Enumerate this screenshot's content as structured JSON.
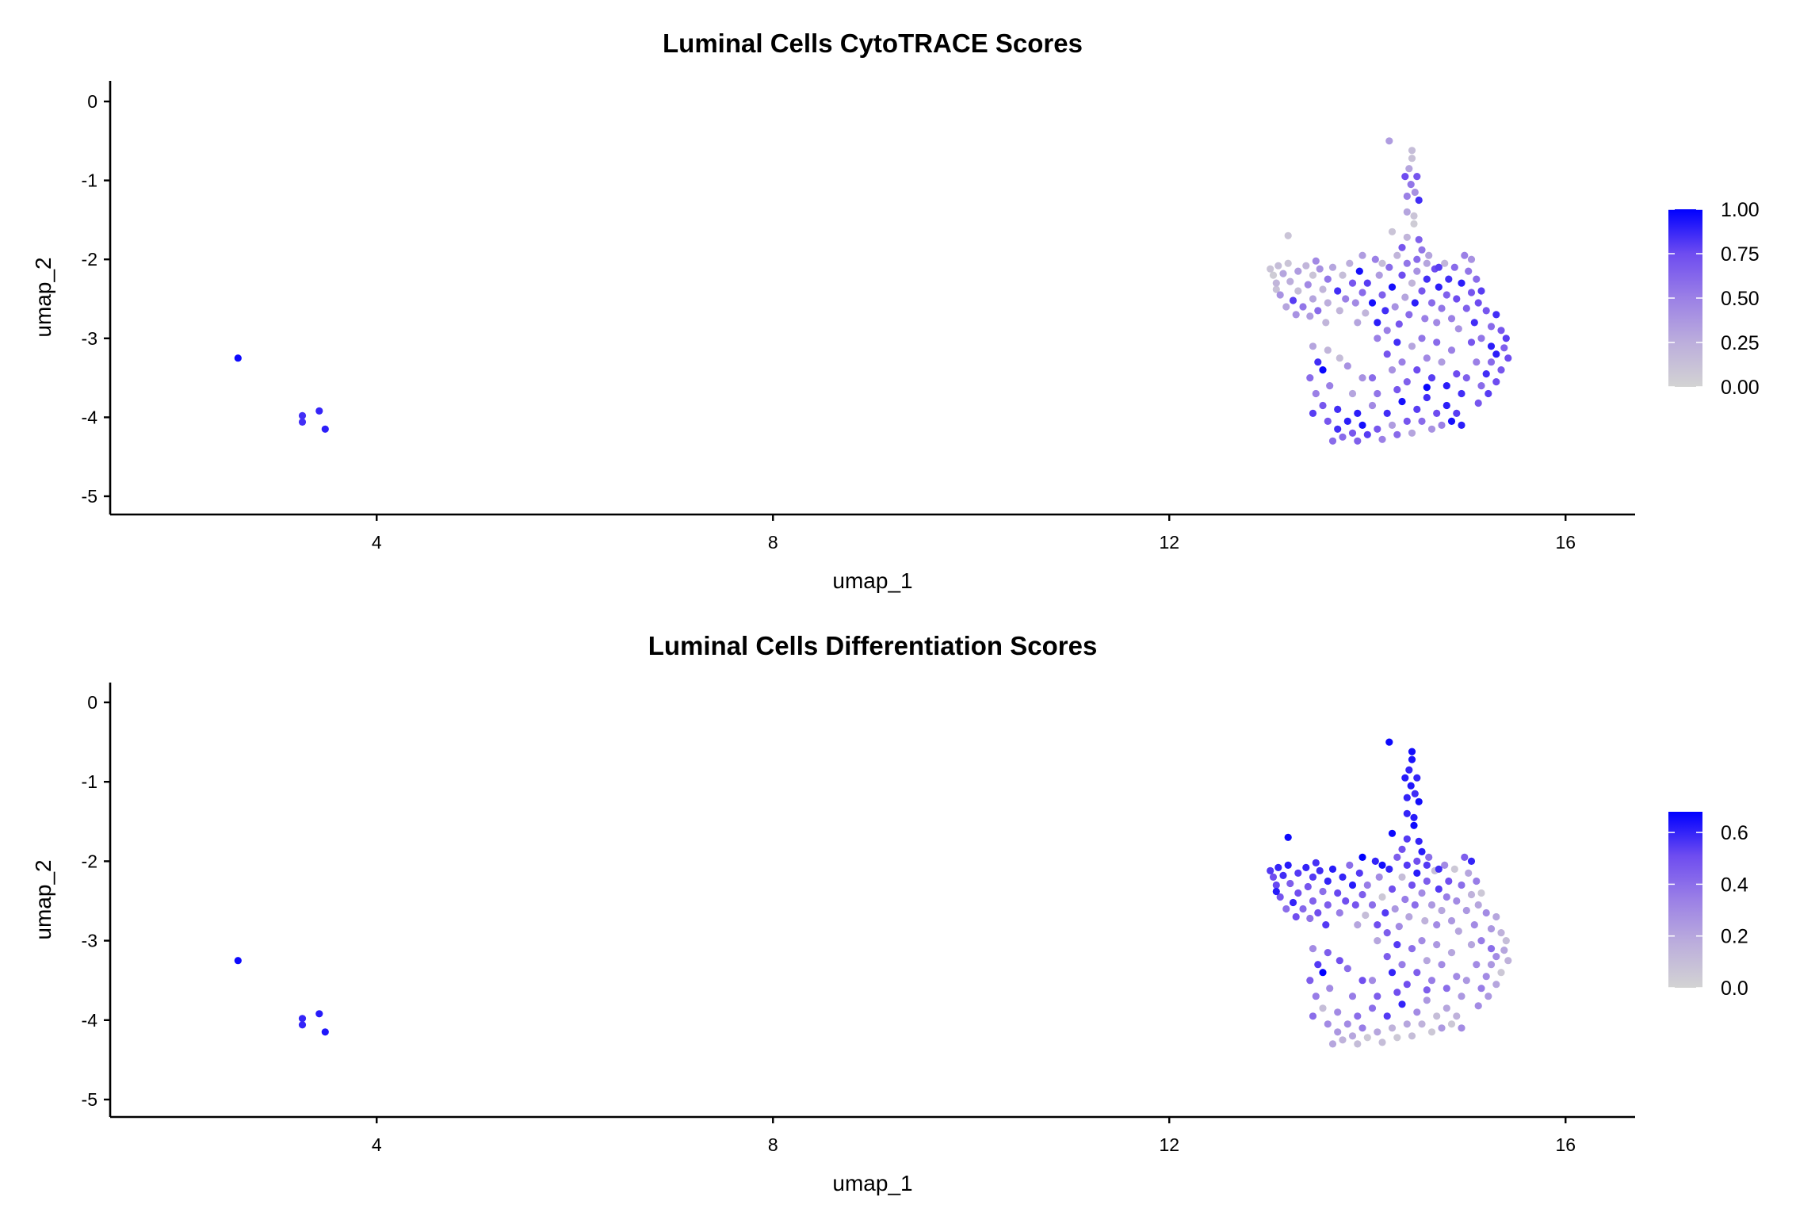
{
  "chart_data": [
    {
      "type": "scatter",
      "title": "Luminal Cells CytoTRACE Scores",
      "xlabel": "umap_1",
      "ylabel": "umap_2",
      "xlim": [
        1.31,
        16.71
      ],
      "ylim": [
        -5.23,
        0.26
      ],
      "xticks": [
        4,
        8,
        12,
        16
      ],
      "yticks": [
        0,
        -1,
        -2,
        -3,
        -4,
        -5
      ],
      "grid": false,
      "legend_placement": "right",
      "color_field": "cytotrace",
      "colorbar": {
        "limits": [
          0,
          1
        ],
        "breaks": [
          1.0,
          0.75,
          0.5,
          0.25,
          0.0
        ],
        "labels": [
          "1.00",
          "0.75",
          "0.50",
          "0.25",
          "0.00"
        ],
        "low_color": "#D3D3D3",
        "high_color": "#0000FF"
      }
    },
    {
      "type": "scatter",
      "title": "Luminal Cells Differentiation Scores",
      "xlabel": "umap_1",
      "ylabel": "umap_2",
      "xlim": [
        1.31,
        16.71
      ],
      "ylim": [
        -5.23,
        0.26
      ],
      "xticks": [
        4,
        8,
        12,
        16
      ],
      "yticks": [
        0,
        -1,
        -2,
        -3,
        -4,
        -5
      ],
      "grid": false,
      "legend_placement": "right",
      "color_field": "differentiation",
      "colorbar": {
        "limits": [
          0,
          0.68
        ],
        "breaks": [
          0.6,
          0.4,
          0.2,
          0.0
        ],
        "labels": [
          "0.6",
          "0.4",
          "0.2",
          "0.0"
        ],
        "low_color": "#D3D3D3",
        "high_color": "#0000FF"
      }
    }
  ],
  "cells_columns": [
    "umap_1",
    "umap_2",
    "cytotrace",
    "differentiation"
  ],
  "cells": [
    [
      2.6,
      -3.25,
      0.97,
      0.66
    ],
    [
      3.25,
      -3.98,
      0.85,
      0.6
    ],
    [
      3.25,
      -4.06,
      0.85,
      0.6
    ],
    [
      3.42,
      -3.92,
      0.88,
      0.62
    ],
    [
      3.48,
      -4.15,
      0.9,
      0.63
    ],
    [
      14.22,
      -0.5,
      0.35,
      0.66
    ],
    [
      14.45,
      -0.62,
      0.15,
      0.65
    ],
    [
      14.45,
      -0.72,
      0.12,
      0.64
    ],
    [
      14.42,
      -0.85,
      0.3,
      0.6
    ],
    [
      14.38,
      -0.95,
      0.75,
      0.62
    ],
    [
      14.5,
      -0.95,
      0.7,
      0.6
    ],
    [
      14.44,
      -1.05,
      0.55,
      0.63
    ],
    [
      14.48,
      -1.15,
      0.4,
      0.58
    ],
    [
      14.4,
      -1.2,
      0.5,
      0.6
    ],
    [
      14.52,
      -1.25,
      0.85,
      0.65
    ],
    [
      14.4,
      -1.4,
      0.3,
      0.6
    ],
    [
      14.47,
      -1.45,
      0.1,
      0.62
    ],
    [
      14.47,
      -1.55,
      0.05,
      0.66
    ],
    [
      14.25,
      -1.65,
      0.1,
      0.66
    ],
    [
      14.4,
      -1.72,
      0.2,
      0.55
    ],
    [
      14.52,
      -1.75,
      0.65,
      0.6
    ],
    [
      14.35,
      -1.85,
      0.7,
      0.5
    ],
    [
      14.55,
      -1.88,
      0.55,
      0.62
    ],
    [
      13.95,
      -1.95,
      0.35,
      0.68
    ],
    [
      14.15,
      -2.05,
      0.15,
      0.65
    ],
    [
      13.2,
      -1.7,
      0.1,
      0.66
    ],
    [
      14.5,
      -2.0,
      0.6,
      0.5
    ],
    [
      14.6,
      -2.05,
      0.3,
      0.55
    ],
    [
      14.72,
      -2.1,
      0.8,
      0.58
    ],
    [
      13.02,
      -2.12,
      0.1,
      0.55
    ],
    [
      13.05,
      -2.2,
      0.05,
      0.5
    ],
    [
      13.1,
      -2.08,
      0.15,
      0.6
    ],
    [
      13.08,
      -2.3,
      0.2,
      0.52
    ],
    [
      13.15,
      -2.18,
      0.3,
      0.58
    ],
    [
      13.12,
      -2.45,
      0.4,
      0.48
    ],
    [
      13.2,
      -2.05,
      0.1,
      0.62
    ],
    [
      13.22,
      -2.28,
      0.25,
      0.45
    ],
    [
      13.25,
      -2.52,
      0.8,
      0.6
    ],
    [
      13.3,
      -2.15,
      0.35,
      0.55
    ],
    [
      13.3,
      -2.4,
      0.15,
      0.5
    ],
    [
      13.35,
      -2.6,
      0.55,
      0.42
    ],
    [
      13.38,
      -2.08,
      0.2,
      0.6
    ],
    [
      13.4,
      -2.32,
      0.45,
      0.48
    ],
    [
      13.45,
      -2.2,
      0.1,
      0.55
    ],
    [
      13.45,
      -2.5,
      0.3,
      0.44
    ],
    [
      13.5,
      -2.65,
      0.6,
      0.5
    ],
    [
      13.52,
      -2.12,
      0.4,
      0.58
    ],
    [
      13.55,
      -2.38,
      0.2,
      0.4
    ],
    [
      13.6,
      -2.25,
      0.55,
      0.6
    ],
    [
      13.6,
      -2.55,
      0.25,
      0.45
    ],
    [
      13.65,
      -2.1,
      0.3,
      0.62
    ],
    [
      13.7,
      -2.4,
      0.85,
      0.52
    ],
    [
      13.72,
      -2.65,
      0.2,
      0.35
    ],
    [
      13.75,
      -2.2,
      0.15,
      0.6
    ],
    [
      13.78,
      -2.5,
      0.5,
      0.5
    ],
    [
      13.18,
      -2.6,
      0.3,
      0.4
    ],
    [
      13.28,
      -2.7,
      0.4,
      0.5
    ],
    [
      13.42,
      -2.72,
      0.35,
      0.38
    ],
    [
      13.58,
      -2.8,
      0.2,
      0.55
    ],
    [
      13.08,
      -2.38,
      0.12,
      0.62
    ],
    [
      13.48,
      -2.02,
      0.45,
      0.57
    ],
    [
      13.82,
      -2.05,
      0.25,
      0.4
    ],
    [
      13.85,
      -2.3,
      0.7,
      0.62
    ],
    [
      13.88,
      -2.55,
      0.45,
      0.48
    ],
    [
      13.9,
      -2.8,
      0.3,
      0.2
    ],
    [
      13.92,
      -2.15,
      0.95,
      0.55
    ],
    [
      13.95,
      -2.42,
      0.6,
      0.45
    ],
    [
      13.98,
      -2.68,
      0.2,
      0.1
    ],
    [
      14.0,
      -2.3,
      0.8,
      0.35
    ],
    [
      14.05,
      -2.55,
      0.95,
      0.4
    ],
    [
      14.08,
      -2.0,
      0.5,
      0.6
    ],
    [
      14.1,
      -2.8,
      0.9,
      0.5
    ],
    [
      14.12,
      -2.2,
      0.35,
      0.3
    ],
    [
      14.15,
      -2.45,
      0.65,
      0.05
    ],
    [
      14.18,
      -2.65,
      0.85,
      0.55
    ],
    [
      14.2,
      -2.9,
      0.5,
      0.45
    ],
    [
      14.22,
      -2.1,
      0.6,
      0.6
    ],
    [
      14.25,
      -2.35,
      0.95,
      0.5
    ],
    [
      14.28,
      -2.6,
      0.4,
      0.25
    ],
    [
      14.3,
      -1.95,
      0.2,
      0.45
    ],
    [
      14.32,
      -2.82,
      0.7,
      0.3
    ],
    [
      14.35,
      -2.2,
      0.75,
      0.1
    ],
    [
      14.38,
      -2.48,
      0.3,
      0.35
    ],
    [
      14.4,
      -2.05,
      0.55,
      0.55
    ],
    [
      14.42,
      -2.7,
      0.6,
      0.2
    ],
    [
      14.45,
      -2.3,
      0.2,
      0.5
    ],
    [
      14.48,
      -2.55,
      0.9,
      0.4
    ],
    [
      14.5,
      -2.15,
      0.4,
      0.62
    ],
    [
      14.55,
      -2.4,
      0.7,
      0.3
    ],
    [
      14.58,
      -2.75,
      0.5,
      0.15
    ],
    [
      14.6,
      -2.25,
      0.85,
      0.45
    ],
    [
      14.62,
      -1.95,
      0.3,
      0.4
    ],
    [
      14.65,
      -2.55,
      0.6,
      0.25
    ],
    [
      14.68,
      -2.12,
      0.75,
      0.1
    ],
    [
      14.7,
      -2.8,
      0.45,
      0.3
    ],
    [
      14.72,
      -2.35,
      0.9,
      0.55
    ],
    [
      14.75,
      -2.62,
      0.55,
      0.2
    ],
    [
      14.78,
      -2.05,
      0.2,
      0.3
    ],
    [
      14.8,
      -2.45,
      0.65,
      0.35
    ],
    [
      14.82,
      -2.25,
      0.85,
      0.5
    ],
    [
      14.85,
      -2.75,
      0.5,
      0.25
    ],
    [
      14.88,
      -2.1,
      0.6,
      0.05
    ],
    [
      14.9,
      -2.5,
      0.75,
      0.3
    ],
    [
      14.92,
      -2.88,
      0.4,
      0.2
    ],
    [
      14.95,
      -2.3,
      0.9,
      0.4
    ],
    [
      15.0,
      -2.62,
      0.65,
      0.25
    ],
    [
      15.02,
      -2.15,
      0.55,
      0.2
    ],
    [
      15.05,
      -2.42,
      0.7,
      0.15
    ],
    [
      15.08,
      -2.8,
      0.85,
      0.3
    ],
    [
      15.1,
      -2.25,
      0.6,
      0.35
    ],
    [
      15.12,
      -2.55,
      0.75,
      0.2
    ],
    [
      15.15,
      -2.4,
      0.8,
      0.05
    ],
    [
      15.2,
      -2.65,
      0.7,
      0.3
    ],
    [
      15.25,
      -2.85,
      0.6,
      0.25
    ],
    [
      14.98,
      -1.95,
      0.5,
      0.45
    ],
    [
      15.05,
      -2.0,
      0.4,
      0.6
    ],
    [
      15.3,
      -2.7,
      0.85,
      0.2
    ],
    [
      15.35,
      -2.9,
      0.7,
      0.15
    ],
    [
      15.4,
      -3.0,
      0.8,
      0.1
    ],
    [
      15.38,
      -3.12,
      0.65,
      0.2
    ],
    [
      15.3,
      -3.2,
      0.9,
      0.3
    ],
    [
      15.42,
      -3.25,
      0.75,
      0.15
    ],
    [
      15.25,
      -3.3,
      0.6,
      0.25
    ],
    [
      15.35,
      -3.4,
      0.7,
      0.05
    ],
    [
      15.2,
      -3.45,
      0.85,
      0.3
    ],
    [
      15.3,
      -3.55,
      0.75,
      0.2
    ],
    [
      15.15,
      -3.6,
      0.6,
      0.35
    ],
    [
      15.22,
      -3.7,
      0.8,
      0.25
    ],
    [
      15.1,
      -3.3,
      0.5,
      0.3
    ],
    [
      15.05,
      -3.05,
      0.7,
      0.2
    ],
    [
      15.15,
      -3.0,
      0.55,
      0.35
    ],
    [
      15.0,
      -3.5,
      0.65,
      0.25
    ],
    [
      15.12,
      -3.82,
      0.7,
      0.3
    ],
    [
      15.25,
      -3.1,
      0.9,
      0.4
    ],
    [
      14.1,
      -3.0,
      0.5,
      0.2
    ],
    [
      14.2,
      -3.2,
      0.7,
      0.45
    ],
    [
      14.25,
      -3.4,
      0.4,
      0.6
    ],
    [
      14.3,
      -3.05,
      0.85,
      0.55
    ],
    [
      14.35,
      -3.3,
      0.5,
      0.35
    ],
    [
      14.4,
      -3.55,
      0.65,
      0.5
    ],
    [
      14.45,
      -3.1,
      0.3,
      0.4
    ],
    [
      14.5,
      -3.4,
      0.75,
      0.45
    ],
    [
      14.55,
      -3.0,
      0.55,
      0.3
    ],
    [
      14.6,
      -3.25,
      0.45,
      0.2
    ],
    [
      14.65,
      -3.5,
      0.8,
      0.35
    ],
    [
      14.7,
      -3.05,
      0.6,
      0.25
    ],
    [
      14.75,
      -3.3,
      0.35,
      0.3
    ],
    [
      14.8,
      -3.6,
      0.9,
      0.4
    ],
    [
      14.85,
      -3.15,
      0.5,
      0.2
    ],
    [
      14.9,
      -3.45,
      0.75,
      0.3
    ],
    [
      14.95,
      -3.7,
      0.85,
      0.25
    ],
    [
      14.05,
      -3.5,
      0.6,
      0.3
    ],
    [
      13.45,
      -3.1,
      0.3,
      0.3
    ],
    [
      13.5,
      -3.3,
      0.85,
      0.55
    ],
    [
      13.42,
      -3.5,
      0.6,
      0.45
    ],
    [
      13.55,
      -3.4,
      0.98,
      0.68
    ],
    [
      13.48,
      -3.7,
      0.5,
      0.35
    ],
    [
      13.6,
      -3.15,
      0.2,
      0.45
    ],
    [
      13.72,
      -3.25,
      0.15,
      0.5
    ],
    [
      13.8,
      -3.35,
      0.4,
      0.4
    ],
    [
      13.55,
      -3.85,
      0.7,
      0.1
    ],
    [
      13.45,
      -3.95,
      0.8,
      0.4
    ],
    [
      13.62,
      -3.6,
      0.5,
      0.3
    ],
    [
      13.7,
      -3.9,
      0.85,
      0.3
    ],
    [
      13.85,
      -3.7,
      0.3,
      0.35
    ],
    [
      13.9,
      -3.95,
      0.9,
      0.4
    ],
    [
      13.95,
      -3.5,
      0.4,
      0.5
    ],
    [
      13.6,
      -4.05,
      0.7,
      0.3
    ],
    [
      13.7,
      -4.15,
      0.85,
      0.25
    ],
    [
      13.75,
      -4.25,
      0.6,
      0.15
    ],
    [
      13.8,
      -4.05,
      0.9,
      0.3
    ],
    [
      13.85,
      -4.2,
      0.7,
      0.2
    ],
    [
      13.9,
      -4.3,
      0.65,
      0.1
    ],
    [
      13.95,
      -4.1,
      0.95,
      0.35
    ],
    [
      14.0,
      -4.22,
      0.8,
      0.05
    ],
    [
      14.05,
      -3.85,
      0.45,
      0.4
    ],
    [
      14.1,
      -4.15,
      0.7,
      0.2
    ],
    [
      14.15,
      -4.28,
      0.5,
      0.1
    ],
    [
      14.2,
      -3.95,
      0.85,
      0.55
    ],
    [
      14.25,
      -4.1,
      0.35,
      0.15
    ],
    [
      14.3,
      -4.22,
      0.6,
      0.05
    ],
    [
      14.35,
      -3.8,
      0.95,
      0.6
    ],
    [
      14.4,
      -4.05,
      0.7,
      0.2
    ],
    [
      14.45,
      -4.2,
      0.3,
      0.1
    ],
    [
      14.5,
      -3.9,
      0.8,
      0.3
    ],
    [
      14.55,
      -4.05,
      0.6,
      0.15
    ],
    [
      14.6,
      -3.75,
      0.85,
      0.25
    ],
    [
      14.65,
      -4.15,
      0.4,
      0.05
    ],
    [
      14.7,
      -3.95,
      0.75,
      0.1
    ],
    [
      14.75,
      -4.1,
      0.5,
      0.25
    ],
    [
      14.8,
      -3.85,
      0.9,
      0.2
    ],
    [
      14.85,
      -4.05,
      0.95,
      0.05
    ],
    [
      14.9,
      -3.95,
      0.8,
      0.15
    ],
    [
      14.95,
      -4.1,
      0.9,
      0.3
    ],
    [
      14.6,
      -3.62,
      0.98,
      0.45
    ],
    [
      14.3,
      -3.65,
      0.7,
      0.5
    ],
    [
      13.65,
      -4.3,
      0.6,
      0.2
    ],
    [
      14.1,
      -3.7,
      0.55,
      0.45
    ]
  ]
}
